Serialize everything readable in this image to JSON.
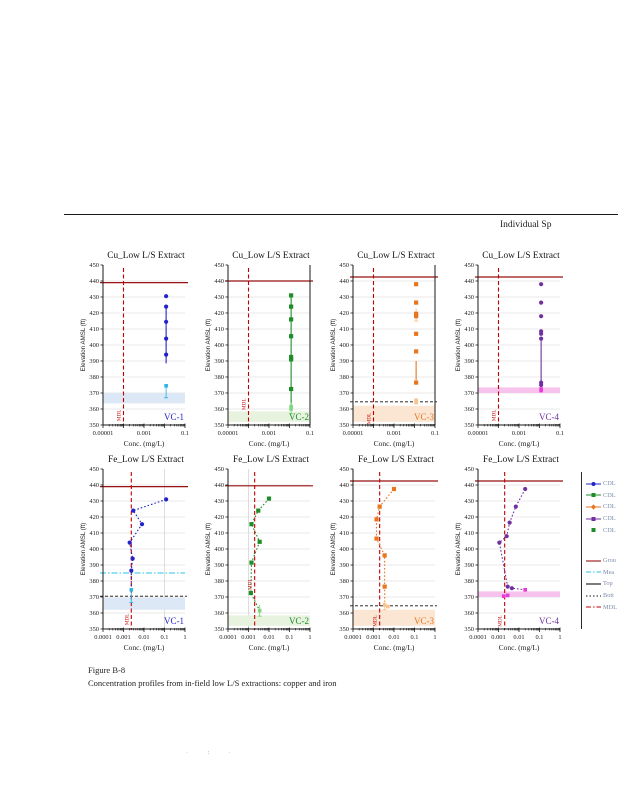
{
  "page": {
    "header_right": "Individual Sp",
    "caption_title": "Figure B-8",
    "caption_text": "Concentration profiles from in-field low L/S extractions: copper and iron",
    "footer_marks": "· : ·"
  },
  "colors": {
    "ground_surface": "#991111",
    "mdl_line": "#c00000",
    "water_level": "#29c3e8",
    "bedrock_dashed": "#111111",
    "gridline": "#e0e0e0",
    "axis": "#1a1a1a"
  },
  "chart_data": [
    {
      "type": "scatter",
      "title": "Cu_Low L/S Extract",
      "well_label": "VC-1",
      "well_color": "#2323c8",
      "xlabel": "Conc. (mg/L)",
      "ylabel": "Elevation AMSL (ft)",
      "xlog_min": -5,
      "xlog_max": -1,
      "xticks": [
        "0.00001",
        "0.001",
        "0.1"
      ],
      "ylim": [
        350,
        450
      ],
      "ystep": 10,
      "series_color": "#2323c8",
      "nd_color": "#2fb4e8",
      "marker": "circle",
      "line_style": "solid",
      "points": [
        [
          0.012,
          430.5
        ],
        [
          0.012,
          424
        ],
        [
          0.012,
          414.5
        ],
        [
          0.012,
          404
        ],
        [
          0.012,
          394
        ]
      ],
      "line": [
        [
          0.012,
          424
        ],
        [
          0.012,
          388.5
        ]
      ],
      "nd_points": [
        [
          0.012,
          374.5
        ]
      ],
      "error_bars": [
        {
          "x": 0.012,
          "y1": 374.5,
          "y2": 367
        }
      ],
      "ground_surface_y": 439,
      "water_level_y": null,
      "bedrock_dashed_y": null,
      "band": {
        "from": 363.5,
        "to": 370,
        "color": "#dde8f6"
      },
      "mdl_x": 0.0001,
      "mdl_label": "MDL",
      "mdl_text_y": 356,
      "vgrid": [],
      "right_border": false
    },
    {
      "type": "scatter",
      "title": "Cu_Low L/S Extract",
      "well_label": "VC-2",
      "well_color": "#1e8c28",
      "xlabel": "Conc. (mg/L)",
      "ylabel": "Elevation AMSL (ft)",
      "xlog_min": -5,
      "xlog_max": -1,
      "xticks": [
        "0.00001",
        "0.001",
        "0.1"
      ],
      "ylim": [
        350,
        450
      ],
      "ystep": 10,
      "series_color": "#1e8c28",
      "nd_color": "#7fd77f",
      "marker": "square",
      "line_style": "solid",
      "points": [
        [
          0.012,
          431
        ],
        [
          0.012,
          424
        ],
        [
          0.012,
          416
        ],
        [
          0.012,
          405.5
        ],
        [
          0.012,
          392.5
        ],
        [
          0.012,
          391
        ],
        [
          0.012,
          372.5
        ]
      ],
      "line": [
        [
          0.012,
          431
        ],
        [
          0.012,
          362
        ]
      ],
      "nd_points": [
        [
          0.012,
          361.5
        ],
        [
          0.012,
          360
        ]
      ],
      "error_bars": [
        {
          "x": 0.012,
          "y1": 364,
          "y2": 357
        }
      ],
      "ground_surface_y": 440,
      "water_level_y": null,
      "bedrock_dashed_y": null,
      "band": {
        "from": 352,
        "to": 358.5,
        "color": "#e7f2df"
      },
      "mdl_x": 0.0001,
      "mdl_label": "MDL",
      "mdl_text_y": 363,
      "vgrid": [],
      "right_border": true
    },
    {
      "type": "scatter",
      "title": "Cu_Low L/S Extract",
      "well_label": "VC-3",
      "well_color": "#e8761e",
      "xlabel": "Conc. (mg/L)",
      "ylabel": "Elevation AMSL (ft)",
      "xlog_min": -5,
      "xlog_max": -1,
      "xticks": [
        "0.00001",
        "0.001",
        "0.1"
      ],
      "ylim": [
        350,
        450
      ],
      "ystep": 10,
      "series_color": "#e8761e",
      "nd_color": "#f7c48e",
      "marker": "square",
      "line_style": "solid",
      "points": [
        [
          0.012,
          438
        ],
        [
          0.012,
          426.5
        ],
        [
          0.012,
          419.5
        ],
        [
          0.012,
          418
        ],
        [
          0.012,
          407
        ],
        [
          0.012,
          396
        ],
        [
          0.012,
          376.5
        ]
      ],
      "line": [
        [
          0.012,
          390
        ],
        [
          0.012,
          378
        ]
      ],
      "nd_points": [
        [
          0.012,
          365.5
        ],
        [
          0.012,
          364
        ]
      ],
      "error_bars": [
        {
          "x": 0.012,
          "y1": 423,
          "y2": 415
        }
      ],
      "ground_surface_y": 442.5,
      "water_level_y": null,
      "bedrock_dashed_y": 364.5,
      "band": {
        "from": 352,
        "to": 362,
        "color": "#fbe6d4"
      },
      "mdl_x": 0.0001,
      "mdl_label": "MDL",
      "mdl_text_y": 354,
      "vgrid": [],
      "right_border": true
    },
    {
      "type": "scatter",
      "title": "Cu_Low L/S Extract",
      "well_label": "VC-4",
      "well_color": "#7030a0",
      "xlabel": "Conc. (mg/L)",
      "ylabel": "Elevation AMSL (ft)",
      "xlog_min": -5,
      "xlog_max": -1,
      "xticks": [
        "0.00001",
        "0.001",
        "0.1"
      ],
      "ylim": [
        350,
        450
      ],
      "ystep": 10,
      "series_color": "#7030a0",
      "nd_color": "#e83ad8",
      "marker": "circle",
      "line_style": "solid",
      "points": [
        [
          0.012,
          438
        ],
        [
          0.012,
          426.5
        ],
        [
          0.012,
          418
        ],
        [
          0.012,
          408.5
        ],
        [
          0.012,
          407
        ],
        [
          0.012,
          404
        ],
        [
          0.012,
          376.5
        ],
        [
          0.012,
          375
        ]
      ],
      "line": [
        [
          0.012,
          404
        ],
        [
          0.012,
          375.5
        ]
      ],
      "nd_points": [
        [
          0.012,
          372.5
        ],
        [
          0.012,
          371.5
        ]
      ],
      "error_bars": [],
      "ground_surface_y": 442.5,
      "water_level_y": null,
      "bedrock_dashed_y": null,
      "band": {
        "from": 370,
        "to": 373.5,
        "color": "#f7c2ec"
      },
      "mdl_x": 0.0001,
      "mdl_label": "MDL",
      "mdl_text_y": 356,
      "vgrid": [],
      "right_border": false
    },
    {
      "type": "scatter",
      "title": "Fe_Low L/S Extract",
      "well_label": "VC-1",
      "well_color": "#2323c8",
      "xlabel": "Conc. (mg/L)",
      "ylabel": "Elevation AMSL (ft)",
      "xlog_min": -4,
      "xlog_max": 0,
      "xticks": [
        "0.0001",
        "0.001",
        "0.01",
        "0.1",
        "1"
      ],
      "ylim": [
        350,
        450
      ],
      "ystep": 10,
      "series_color": "#2323c8",
      "nd_color": "#2fb4e8",
      "marker": "circle",
      "line_style": "dotted",
      "points": [
        [
          0.12,
          431
        ],
        [
          0.003,
          424
        ],
        [
          0.008,
          415.5
        ],
        [
          0.002,
          404
        ],
        [
          0.0028,
          394
        ],
        [
          0.0024,
          386.5
        ]
      ],
      "line": [
        [
          0.12,
          431
        ],
        [
          0.003,
          424
        ],
        [
          0.008,
          415.5
        ],
        [
          0.002,
          404
        ],
        [
          0.0028,
          394
        ],
        [
          0.0024,
          386.5
        ],
        [
          0.0024,
          374.5
        ]
      ],
      "nd_points": [
        [
          0.0024,
          374.5
        ]
      ],
      "error_bars": [
        {
          "x": 0.0024,
          "y1": 373,
          "y2": 366.5
        }
      ],
      "ground_surface_y": 439,
      "water_level_y": 385,
      "bedrock_dashed_y": 370.5,
      "band": {
        "from": 362,
        "to": 369.5,
        "color": "#dde8f6"
      },
      "mdl_x": 0.0024,
      "mdl_label": "MDL",
      "mdl_text_y": 356,
      "vgrid": [
        0.1
      ],
      "right_border": false
    },
    {
      "type": "scatter",
      "title": "Fe_Low L/S Extract",
      "well_label": "VC-2",
      "well_color": "#1e8c28",
      "xlabel": "Conc. (mg/L)",
      "ylabel": "Elevation AMSL (ft)",
      "xlog_min": -4,
      "xlog_max": 0,
      "xticks": [
        "0.0001",
        "0.001",
        "0.01",
        "0.1",
        "1"
      ],
      "ylim": [
        350,
        450
      ],
      "ystep": 10,
      "series_color": "#1e8c28",
      "nd_color": "#7fd77f",
      "marker": "square",
      "line_style": "dotted",
      "points": [
        [
          0.01,
          431.5
        ],
        [
          0.003,
          424
        ],
        [
          0.0014,
          415.5
        ],
        [
          0.0035,
          404.5
        ],
        [
          0.0014,
          391.5
        ],
        [
          0.0013,
          372.5
        ]
      ],
      "line": [
        [
          0.01,
          431.5
        ],
        [
          0.003,
          424
        ],
        [
          0.0014,
          415.5
        ],
        [
          0.0035,
          404.5
        ],
        [
          0.0014,
          391.5
        ],
        [
          0.0013,
          372.5
        ],
        [
          0.0035,
          361.5
        ]
      ],
      "nd_points": [
        [
          0.0035,
          361.5
        ]
      ],
      "error_bars": [
        {
          "x": 0.0035,
          "y1": 365,
          "y2": 358
        }
      ],
      "ground_surface_y": 439.5,
      "water_level_y": null,
      "bedrock_dashed_y": null,
      "band": {
        "from": 352,
        "to": 358.5,
        "color": "#e7f2df"
      },
      "mdl_x": 0.002,
      "mdl_label": "MDL",
      "mdl_text_y": 378,
      "vgrid": [
        0.001
      ],
      "right_border": false
    },
    {
      "type": "scatter",
      "title": "Fe_Low L/S Extract",
      "well_label": "VC-3",
      "well_color": "#e8761e",
      "xlabel": "Conc. (mg/L)",
      "ylabel": "Elevation AMSL (ft)",
      "xlog_min": -4,
      "xlog_max": 0,
      "xticks": [
        "0.0001",
        "0.001",
        "0.01",
        "0.1",
        "1"
      ],
      "ylim": [
        350,
        450
      ],
      "ystep": 10,
      "series_color": "#e8761e",
      "nd_color": "#f7c48e",
      "marker": "square",
      "line_style": "dotted",
      "points": [
        [
          0.01,
          437.5
        ],
        [
          0.002,
          426.5
        ],
        [
          0.0014,
          418.5
        ],
        [
          0.0014,
          406.5
        ],
        [
          0.0035,
          396
        ],
        [
          0.0035,
          376.5
        ]
      ],
      "line": [
        [
          0.01,
          437.5
        ],
        [
          0.002,
          426.5
        ],
        [
          0.0014,
          418.5
        ],
        [
          0.0014,
          406.5
        ],
        [
          0.0035,
          396
        ],
        [
          0.0035,
          376.5
        ],
        [
          0.0035,
          365
        ]
      ],
      "nd_points": [
        [
          0.0035,
          365
        ],
        [
          0.005,
          364
        ]
      ],
      "error_bars": [
        {
          "x": 0.0035,
          "y1": 368,
          "y2": 362
        }
      ],
      "ground_surface_y": 442.5,
      "water_level_y": null,
      "bedrock_dashed_y": 364.5,
      "band": {
        "from": 352,
        "to": 362,
        "color": "#fbe6d4"
      },
      "mdl_x": 0.002,
      "mdl_label": "MDL",
      "mdl_text_y": 355,
      "vgrid": [],
      "right_border": false
    },
    {
      "type": "scatter",
      "title": "Fe_Low L/S Extract",
      "well_label": "VC-4",
      "well_color": "#7030a0",
      "xlabel": "Conc. (mg/L)",
      "ylabel": "Elevation AMSL (ft)",
      "xlog_min": -4,
      "xlog_max": 0,
      "xticks": [
        "0.0001",
        "0.001",
        "0.01",
        "0.1",
        "1"
      ],
      "ylim": [
        350,
        450
      ],
      "ystep": 10,
      "series_color": "#7030a0",
      "nd_color": "#e83ad8",
      "marker": "circle",
      "line_style": "dotted",
      "points": [
        [
          0.02,
          437.5
        ],
        [
          0.007,
          426.5
        ],
        [
          0.0035,
          416.5
        ],
        [
          0.0025,
          408
        ],
        [
          0.0011,
          404
        ],
        [
          0.0028,
          376.5
        ],
        [
          0.0045,
          375.5
        ]
      ],
      "line": [
        [
          0.02,
          437.5
        ],
        [
          0.007,
          426.5
        ],
        [
          0.0035,
          416.5
        ],
        [
          0.0025,
          408
        ],
        [
          0.0011,
          404
        ],
        [
          0.0028,
          376.5
        ],
        [
          0.0045,
          375.5
        ],
        [
          0.02,
          374.5
        ]
      ],
      "nd_points": [
        [
          0.02,
          374.5
        ],
        [
          0.0028,
          371
        ],
        [
          0.0018,
          370.5
        ]
      ],
      "error_bars": [],
      "ground_surface_y": 442.5,
      "water_level_y": null,
      "bedrock_dashed_y": null,
      "band": {
        "from": 370,
        "to": 373.5,
        "color": "#f7c2ec"
      },
      "mdl_x": 0.002,
      "mdl_label": "MDL",
      "mdl_text_y": 355,
      "vgrid": [],
      "right_border": false
    }
  ],
  "legend": {
    "series": [
      {
        "label": "CDL",
        "color": "#2323c8",
        "marker": "circle",
        "line": true
      },
      {
        "label": "CDL",
        "color": "#1e8c28",
        "marker": "square",
        "line": true
      },
      {
        "label": "CDL",
        "color": "#e8761e",
        "marker": "diamond",
        "line": true
      },
      {
        "label": "CDL",
        "color": "#7030a0",
        "marker": "square",
        "line": true
      },
      {
        "label": "CDL",
        "color": "#1e8c28",
        "marker": "square",
        "line": false
      }
    ],
    "reference_lines": [
      {
        "label": "Grou",
        "color": "#991111",
        "style": "solid"
      },
      {
        "label": "Mea",
        "color": "#29c3e8",
        "style": "dashdot"
      },
      {
        "label": "Top",
        "color": "#111111",
        "style": "solid"
      },
      {
        "label": "Bott",
        "color": "#111111",
        "style": "dotted"
      },
      {
        "label": "MDL",
        "color": "#c00000",
        "style": "dashdot"
      }
    ]
  }
}
